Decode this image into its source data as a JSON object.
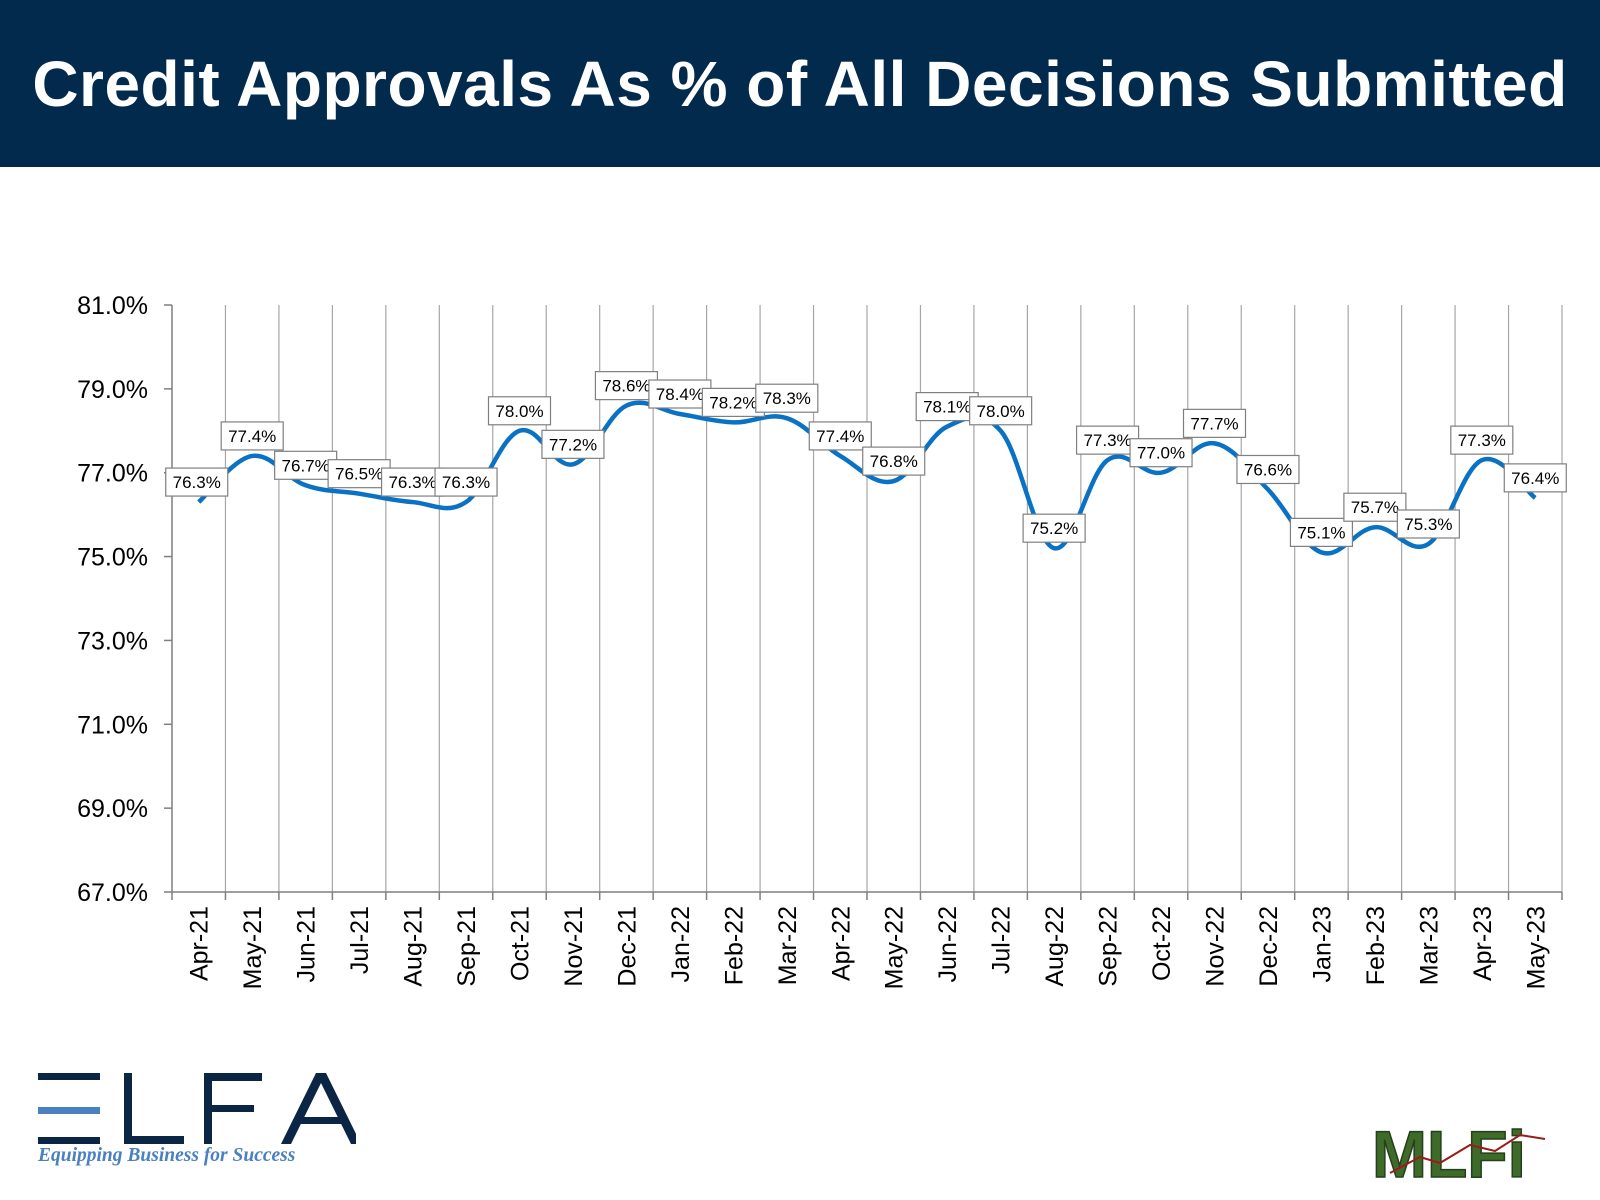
{
  "title": "Credit Approvals As % of All Decisions Submitted",
  "colors": {
    "header_bg": "#012A4C",
    "line": "#0A72C4",
    "grid": "#A6A6A6",
    "elfa_navy": "#0B2545",
    "elfa_blue": "#4A7FC1",
    "mlfi_green": "#3E6B2A"
  },
  "chart_data": {
    "type": "line",
    "categories": [
      "Apr-21",
      "May-21",
      "Jun-21",
      "Jul-21",
      "Aug-21",
      "Sep-21",
      "Oct-21",
      "Nov-21",
      "Dec-21",
      "Jan-22",
      "Feb-22",
      "Mar-22",
      "Apr-22",
      "May-22",
      "Jun-22",
      "Jul-22",
      "Aug-22",
      "Sep-22",
      "Oct-22",
      "Nov-22",
      "Dec-22",
      "Jan-23",
      "Feb-23",
      "Mar-23",
      "Apr-23",
      "May-23"
    ],
    "values": [
      76.3,
      77.4,
      76.7,
      76.5,
      76.3,
      76.3,
      78.0,
      77.2,
      78.6,
      78.4,
      78.2,
      78.3,
      77.4,
      76.8,
      78.1,
      78.0,
      75.2,
      77.3,
      77.0,
      77.7,
      76.6,
      75.1,
      75.7,
      75.3,
      77.3,
      76.4
    ],
    "data_labels": [
      "76.3%",
      "77.4%",
      "76.7%",
      "76.5%",
      "76.3%",
      "76.3%",
      "78.0%",
      "77.2%",
      "78.6%",
      "78.4%",
      "78.2%",
      "78.3%",
      "77.4%",
      "76.8%",
      "78.1%",
      "78.0%",
      "75.2%",
      "77.3%",
      "77.0%",
      "77.7%",
      "76.6%",
      "75.1%",
      "75.7%",
      "75.3%",
      "77.3%",
      "76.4%"
    ],
    "ylim": [
      67.0,
      81.0
    ],
    "yticks": [
      67.0,
      69.0,
      71.0,
      73.0,
      75.0,
      77.0,
      79.0,
      81.0
    ],
    "ytick_labels": [
      "67.0%",
      "69.0%",
      "71.0%",
      "73.0%",
      "75.0%",
      "77.0%",
      "79.0%",
      "81.0%"
    ],
    "grid": "vertical",
    "smooth": true,
    "legend": "none"
  },
  "logos": {
    "elfa": {
      "text": "ELFA",
      "tagline": "Equipping Business for Success",
      "icon": "elfa-logo"
    },
    "mlfi": {
      "text": "MLFi",
      "icon": "mlfi-logo"
    }
  }
}
